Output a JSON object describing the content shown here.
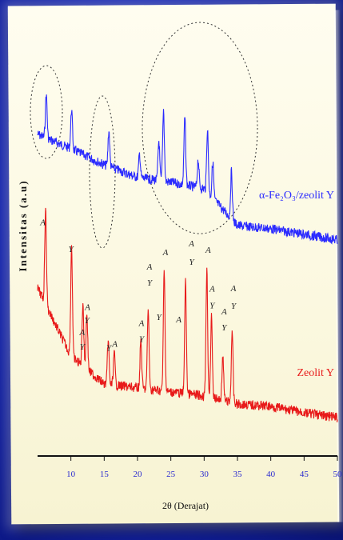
{
  "chart_data": {
    "type": "line",
    "title": "",
    "xlabel": "2θ (Derajat)",
    "ylabel": "Intensitas (a.u)",
    "xlim": [
      5,
      50
    ],
    "xticks": [
      10,
      15,
      20,
      25,
      30,
      35,
      40,
      45,
      50
    ],
    "grid": false,
    "series": [
      {
        "name": "α-Fe₂O₃/zeolit Y",
        "color": "#2b2bff",
        "base": [
          [
            5,
            168
          ],
          [
            10,
            186
          ],
          [
            15,
            206
          ],
          [
            20,
            222
          ],
          [
            25,
            228
          ],
          [
            30,
            236
          ],
          [
            35,
            282
          ],
          [
            40,
            286
          ],
          [
            45,
            293
          ],
          [
            50,
            300
          ]
        ],
        "peaks": [
          [
            6.3,
            55
          ],
          [
            10.1,
            50
          ],
          [
            15.7,
            45
          ],
          [
            20.3,
            30
          ],
          [
            23.2,
            50
          ],
          [
            23.9,
            90
          ],
          [
            27.1,
            85
          ],
          [
            29.1,
            35
          ],
          [
            30.5,
            80
          ],
          [
            31.3,
            45
          ],
          [
            34.1,
            60
          ]
        ]
      },
      {
        "name": "Zeolit Y",
        "color": "#e81a1a",
        "base": [
          [
            5,
            360
          ],
          [
            10,
            445
          ],
          [
            15,
            480
          ],
          [
            20,
            485
          ],
          [
            25,
            490
          ],
          [
            30,
            495
          ],
          [
            35,
            505
          ],
          [
            40,
            508
          ],
          [
            45,
            516
          ],
          [
            50,
            522
          ]
        ],
        "peaks": [
          [
            6.2,
            120
          ],
          [
            10.1,
            140
          ],
          [
            11.8,
            80
          ],
          [
            12.4,
            70
          ],
          [
            15.6,
            55
          ],
          [
            16.5,
            40
          ],
          [
            20.5,
            60
          ],
          [
            21.6,
            100
          ],
          [
            24.0,
            150
          ],
          [
            27.2,
            140
          ],
          [
            30.4,
            160
          ],
          [
            31.1,
            100
          ],
          [
            32.8,
            55
          ],
          [
            34.2,
            90
          ]
        ]
      }
    ],
    "peak_labels": [
      {
        "text": "A",
        "x": 5.8,
        "series": "Zeolit Y",
        "offset": -92
      },
      {
        "text": "Y",
        "x": 10.0,
        "series": "Zeolit Y",
        "offset": -130
      },
      {
        "text": "A",
        "x": 12.5,
        "series": "Zeolit Y",
        "offset": -75
      },
      {
        "text": "Y",
        "x": 12.4,
        "series": "Zeolit Y",
        "offset": -58
      },
      {
        "text": "A",
        "x": 11.7,
        "series": "Zeolit Y",
        "offset": -38
      },
      {
        "text": "Y",
        "x": 11.7,
        "series": "Zeolit Y",
        "offset": -20
      },
      {
        "text": "Y",
        "x": 15.7,
        "series": "Zeolit Y",
        "offset": -42
      },
      {
        "text": "A",
        "x": 16.6,
        "series": "Zeolit Y",
        "offset": -48
      },
      {
        "text": "A",
        "x": 20.6,
        "series": "Zeolit Y",
        "offset": -78
      },
      {
        "text": "Y",
        "x": 20.6,
        "series": "Zeolit Y",
        "offset": -58
      },
      {
        "text": "A",
        "x": 21.8,
        "series": "Zeolit Y",
        "offset": -150
      },
      {
        "text": "Y",
        "x": 21.8,
        "series": "Zeolit Y",
        "offset": -130
      },
      {
        "text": "A",
        "x": 24.2,
        "series": "Zeolit Y",
        "offset": -170
      },
      {
        "text": "Y",
        "x": 23.2,
        "series": "Zeolit Y",
        "offset": -88
      },
      {
        "text": "A",
        "x": 26.2,
        "series": "Zeolit Y",
        "offset": -88
      },
      {
        "text": "A",
        "x": 28.1,
        "series": "Zeolit Y",
        "offset": -185
      },
      {
        "text": "Y",
        "x": 28.1,
        "series": "Zeolit Y",
        "offset": -162
      },
      {
        "text": "A",
        "x": 30.6,
        "series": "Zeolit Y",
        "offset": -180
      },
      {
        "text": "A",
        "x": 31.2,
        "series": "Zeolit Y",
        "offset": -133
      },
      {
        "text": "Y",
        "x": 31.2,
        "series": "Zeolit Y",
        "offset": -112
      },
      {
        "text": "A",
        "x": 33.0,
        "series": "Zeolit Y",
        "offset": -108
      },
      {
        "text": "Y",
        "x": 33.0,
        "series": "Zeolit Y",
        "offset": -88
      },
      {
        "text": "A",
        "x": 34.4,
        "series": "Zeolit Y",
        "offset": -140
      },
      {
        "text": "Y",
        "x": 34.4,
        "series": "Zeolit Y",
        "offset": -118
      }
    ]
  }
}
